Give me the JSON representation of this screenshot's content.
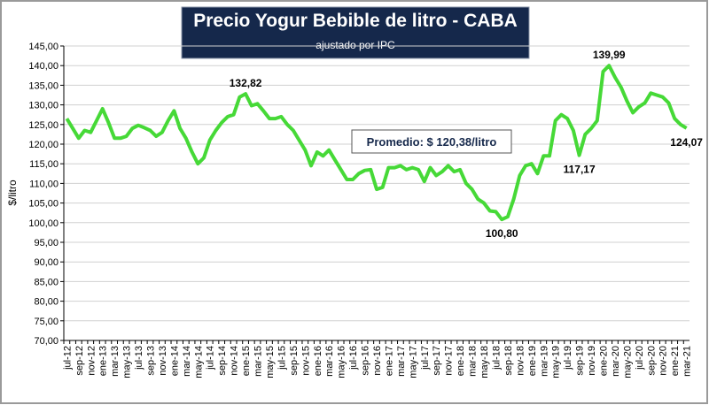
{
  "chart_data": {
    "type": "line",
    "title": "Precio Yogur Bebible de litro - CABA",
    "subtitle": "- ajustado por IPC -",
    "y_label": "$/litro",
    "annotation": "Promedio: $ 120,38/litro",
    "color": "#46d937",
    "grid": true,
    "ylim": [
      70,
      145
    ],
    "yticks": [
      {
        "value": 70,
        "label": "70,00"
      },
      {
        "value": 75,
        "label": "75,00"
      },
      {
        "value": 80,
        "label": "80,00"
      },
      {
        "value": 85,
        "label": "85,00"
      },
      {
        "value": 90,
        "label": "90,00"
      },
      {
        "value": 95,
        "label": "95,00"
      },
      {
        "value": 100,
        "label": "100,00"
      },
      {
        "value": 105,
        "label": "105,00"
      },
      {
        "value": 110,
        "label": "110,00"
      },
      {
        "value": 115,
        "label": "115,00"
      },
      {
        "value": 120,
        "label": "120,00"
      },
      {
        "value": 125,
        "label": "125,00"
      },
      {
        "value": 130,
        "label": "130,00"
      },
      {
        "value": 135,
        "label": "135,00"
      },
      {
        "value": 140,
        "label": "140,00"
      },
      {
        "value": 145,
        "label": "145,00"
      }
    ],
    "categories": [
      "jul-12",
      null,
      "sep-12",
      null,
      "nov-12",
      null,
      "ene-13",
      null,
      "mar-13",
      null,
      "may-13",
      null,
      "jul-13",
      null,
      "sep-13",
      null,
      "nov-13",
      null,
      "ene-14",
      null,
      "mar-14",
      null,
      "may-14",
      null,
      "jul-14",
      null,
      "sep-14",
      null,
      "nov-14",
      null,
      "ene-15",
      null,
      "mar-15",
      null,
      "may-15",
      null,
      "jul-15",
      null,
      "sep-15",
      null,
      "nov-15",
      null,
      "ene-16",
      null,
      "mar-16",
      null,
      "may-16",
      null,
      "jul-16",
      null,
      "sep-16",
      null,
      "nov-16",
      null,
      "ene-17",
      null,
      "mar-17",
      null,
      "may-17",
      null,
      "jul-17",
      null,
      "sep-17",
      null,
      "nov-17",
      null,
      "ene-18",
      null,
      "mar-18",
      null,
      "may-18",
      null,
      "jul-18",
      null,
      "sep-18",
      null,
      "nov-18",
      null,
      "ene-19",
      null,
      "mar-19",
      null,
      "may-19",
      null,
      "jul-19",
      null,
      "sep-19",
      null,
      "nov-19",
      null,
      "ene-20",
      null,
      "mar-20",
      null,
      "may-20",
      null,
      "jul-20",
      null,
      "sep-20",
      null,
      "nov-20",
      null,
      "ene-21",
      null,
      "mar-21"
    ],
    "values": [
      126.5,
      124,
      121.5,
      123.5,
      123,
      126,
      129,
      125.5,
      121.5,
      121.5,
      122,
      124,
      124.8,
      124.2,
      123.5,
      122,
      123,
      126,
      128.5,
      124,
      121.5,
      118,
      115,
      116.5,
      121,
      123.5,
      125.5,
      127,
      127.5,
      132,
      132.82,
      129.8,
      130.3,
      128.5,
      126.5,
      126.5,
      127,
      125,
      123.5,
      121,
      118.5,
      114.5,
      118,
      117,
      118.5,
      116,
      113.5,
      111,
      111,
      112.5,
      113.3,
      113.5,
      108.5,
      109,
      114,
      114,
      114.5,
      113.5,
      114,
      113.5,
      110.5,
      114,
      112,
      113,
      114.5,
      113,
      113.5,
      110,
      108.5,
      106,
      105,
      103,
      102.8,
      100.8,
      101.5,
      106,
      112,
      114.5,
      115,
      112.5,
      117,
      117,
      126,
      127.5,
      126.5,
      123.5,
      117.17,
      122.5,
      124,
      126,
      138.5,
      139.99,
      137,
      134.5,
      131,
      128,
      129.5,
      130.5,
      133,
      132.5,
      132,
      130.5,
      126.5,
      125,
      124.07
    ],
    "value_labels": [
      null,
      null,
      null,
      null,
      null,
      null,
      null,
      null,
      null,
      null,
      null,
      null,
      null,
      null,
      null,
      null,
      null,
      null,
      null,
      null,
      null,
      null,
      null,
      null,
      null,
      null,
      null,
      null,
      null,
      null,
      "132,82",
      null,
      null,
      null,
      null,
      null,
      null,
      null,
      null,
      null,
      null,
      null,
      null,
      null,
      null,
      null,
      null,
      null,
      null,
      null,
      null,
      null,
      null,
      null,
      null,
      null,
      null,
      null,
      null,
      null,
      null,
      null,
      null,
      null,
      null,
      null,
      null,
      null,
      null,
      null,
      null,
      null,
      null,
      "100,80",
      null,
      null,
      null,
      null,
      null,
      null,
      null,
      null,
      null,
      null,
      null,
      null,
      "117,17",
      null,
      null,
      null,
      null,
      "139,99",
      null,
      null,
      null,
      null,
      null,
      null,
      null,
      null,
      null,
      null,
      null,
      null,
      "124,07"
    ]
  }
}
